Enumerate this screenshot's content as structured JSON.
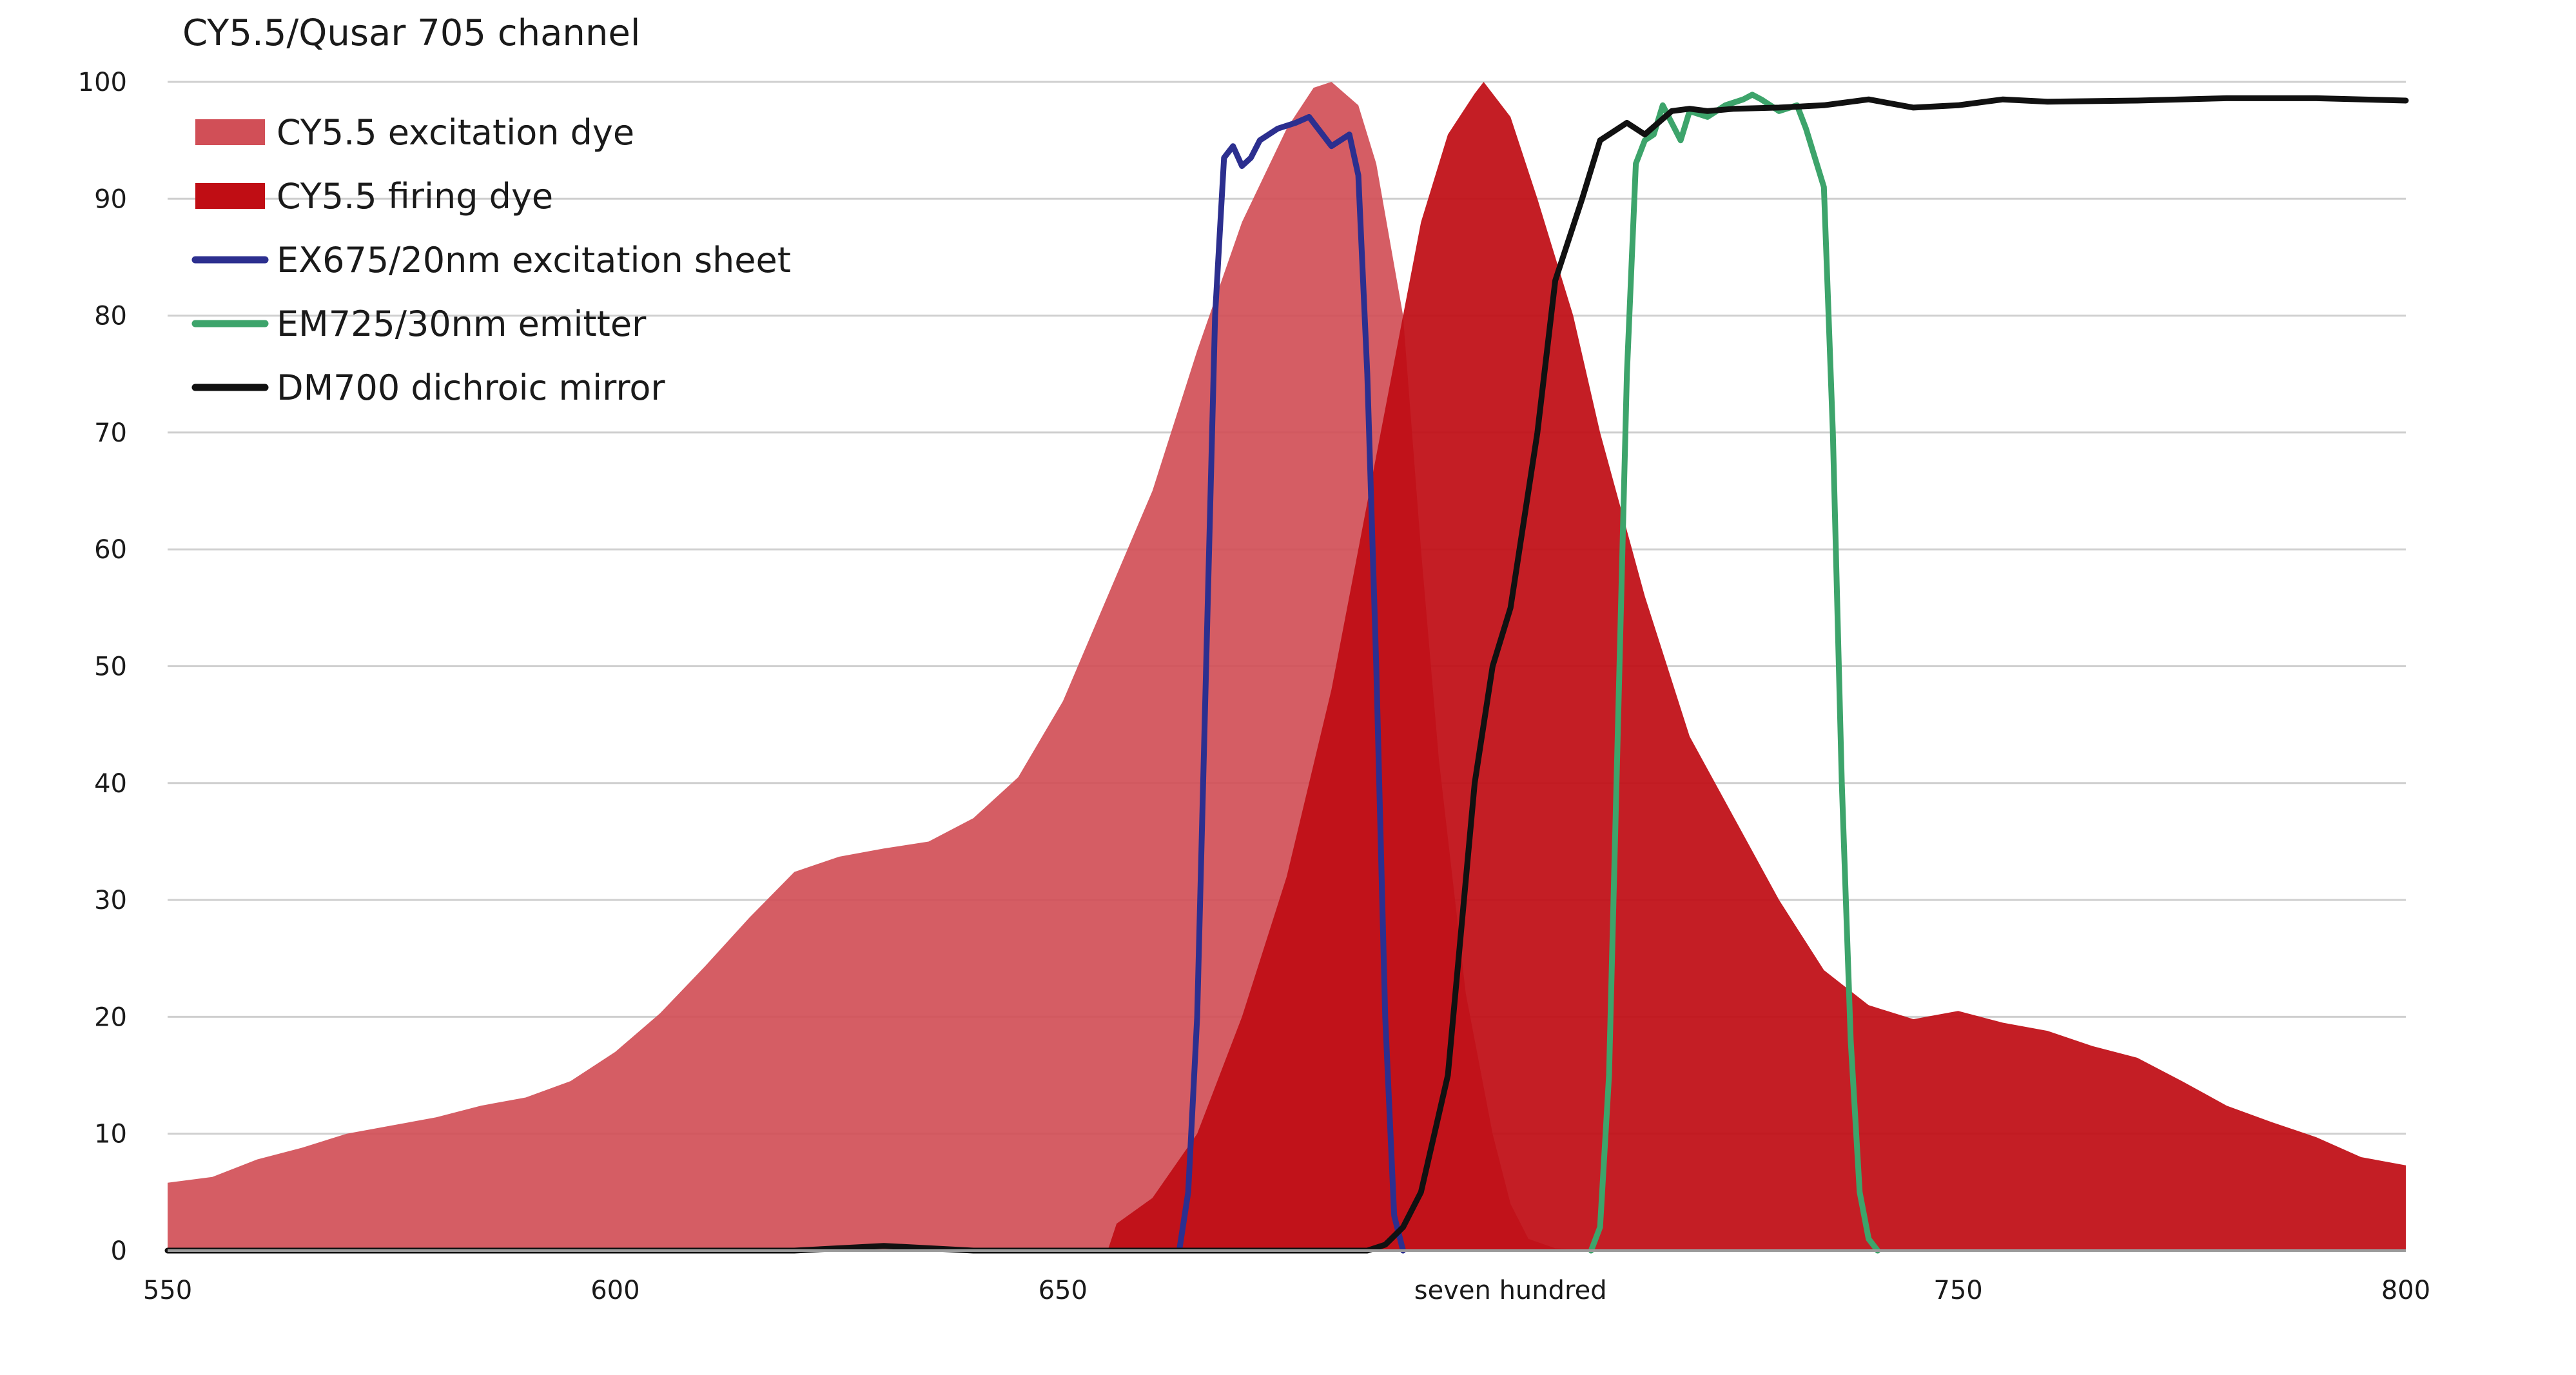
{
  "chart_data": {
    "type": "area",
    "title": "CY5.5/Qusar 705 channel",
    "xlabel": "",
    "ylabel": "",
    "xlim": [
      550,
      800
    ],
    "ylim": [
      0,
      100
    ],
    "x_ticks": [
      550,
      600,
      650,
      700,
      750,
      800
    ],
    "x_tick_labels": [
      "550",
      "600",
      "650",
      "seven hundred",
      "750",
      "800"
    ],
    "y_ticks": [
      0,
      10,
      20,
      30,
      40,
      50,
      60,
      70,
      80,
      90,
      100
    ],
    "y_tick_labels": [
      "0",
      "10",
      "20",
      "30",
      "40",
      "50",
      "60",
      "70",
      "80",
      "90",
      "100"
    ],
    "grid": true,
    "legend_position": "top-left",
    "series": [
      {
        "name": "CY5.5 excitation dye",
        "kind": "area",
        "color": "#d14f57",
        "points": [
          [
            550,
            5.8
          ],
          [
            555,
            6.3
          ],
          [
            560,
            7.8
          ],
          [
            565,
            8.8
          ],
          [
            570,
            10
          ],
          [
            575,
            10.7
          ],
          [
            580,
            11.4
          ],
          [
            585,
            12.4
          ],
          [
            590,
            13.1
          ],
          [
            595,
            14.5
          ],
          [
            600,
            17
          ],
          [
            605,
            20.3
          ],
          [
            610,
            24.3
          ],
          [
            615,
            28.5
          ],
          [
            620,
            32.4
          ],
          [
            625,
            33.7
          ],
          [
            630,
            34.4
          ],
          [
            635,
            35
          ],
          [
            640,
            37
          ],
          [
            645,
            40.5
          ],
          [
            650,
            47
          ],
          [
            655,
            56
          ],
          [
            660,
            65
          ],
          [
            665,
            77
          ],
          [
            670,
            88
          ],
          [
            675,
            96
          ],
          [
            678,
            99.5
          ],
          [
            680,
            100
          ],
          [
            683,
            98
          ],
          [
            685,
            93
          ],
          [
            688,
            80
          ],
          [
            690,
            60
          ],
          [
            692,
            42
          ],
          [
            695,
            22
          ],
          [
            698,
            10
          ],
          [
            700,
            4
          ],
          [
            702,
            1
          ],
          [
            705,
            0.2
          ],
          [
            710,
            0
          ]
        ]
      },
      {
        "name": "CY5.5 firing dye",
        "kind": "area",
        "color": "#c00d14",
        "points": [
          [
            655,
            0
          ],
          [
            656,
            2.3
          ],
          [
            660,
            4.5
          ],
          [
            665,
            10
          ],
          [
            670,
            20
          ],
          [
            675,
            32
          ],
          [
            680,
            48
          ],
          [
            685,
            68
          ],
          [
            688,
            80
          ],
          [
            690,
            88
          ],
          [
            693,
            95.5
          ],
          [
            696,
            99
          ],
          [
            697,
            100
          ],
          [
            700,
            97
          ],
          [
            703,
            90
          ],
          [
            707,
            80
          ],
          [
            710,
            70
          ],
          [
            715,
            56
          ],
          [
            720,
            44
          ],
          [
            725,
            37
          ],
          [
            730,
            30
          ],
          [
            735,
            24
          ],
          [
            740,
            21
          ],
          [
            745,
            19.8
          ],
          [
            750,
            20.5
          ],
          [
            755,
            19.5
          ],
          [
            760,
            18.8
          ],
          [
            765,
            17.5
          ],
          [
            770,
            16.5
          ],
          [
            775,
            14.5
          ],
          [
            780,
            12.4
          ],
          [
            785,
            11
          ],
          [
            790,
            9.7
          ],
          [
            795,
            8
          ],
          [
            800,
            7.3
          ]
        ]
      },
      {
        "name": "EX675/20nm excitation sheet",
        "kind": "line",
        "color": "#2c2f8f",
        "points": [
          [
            663,
            0
          ],
          [
            664,
            5
          ],
          [
            665,
            20
          ],
          [
            666,
            50
          ],
          [
            667,
            80
          ],
          [
            668,
            93.5
          ],
          [
            669,
            94.5
          ],
          [
            670,
            92.8
          ],
          [
            671,
            93.5
          ],
          [
            672,
            95
          ],
          [
            674,
            96
          ],
          [
            676,
            96.5
          ],
          [
            677.5,
            97
          ],
          [
            679,
            95.5
          ],
          [
            680,
            94.5
          ],
          [
            681,
            95
          ],
          [
            682,
            95.5
          ],
          [
            683,
            92
          ],
          [
            684,
            75
          ],
          [
            685,
            50
          ],
          [
            686,
            20
          ],
          [
            687,
            3
          ],
          [
            688,
            0
          ]
        ]
      },
      {
        "name": "EM725/30nm emitter",
        "kind": "line",
        "color": "#3da46b",
        "points": [
          [
            709,
            0
          ],
          [
            710,
            2
          ],
          [
            711,
            15
          ],
          [
            712,
            45
          ],
          [
            713,
            75
          ],
          [
            714,
            93
          ],
          [
            715,
            95
          ],
          [
            716,
            95.5
          ],
          [
            717,
            98
          ],
          [
            718,
            96.5
          ],
          [
            719,
            95
          ],
          [
            720,
            97.5
          ],
          [
            722,
            97
          ],
          [
            724,
            98
          ],
          [
            726,
            98.5
          ],
          [
            727,
            98.9
          ],
          [
            728,
            98.5
          ],
          [
            730,
            97.5
          ],
          [
            732,
            98
          ],
          [
            733,
            96
          ],
          [
            735,
            91
          ],
          [
            736,
            70
          ],
          [
            737,
            40
          ],
          [
            738,
            18
          ],
          [
            739,
            5
          ],
          [
            740,
            1
          ],
          [
            741,
            0
          ]
        ]
      },
      {
        "name": "DM700 dichroic mirror",
        "kind": "line",
        "color": "#111111",
        "points": [
          [
            550,
            0
          ],
          [
            620,
            0
          ],
          [
            630,
            0.4
          ],
          [
            640,
            0
          ],
          [
            680,
            0
          ],
          [
            684,
            0
          ],
          [
            686,
            0.5
          ],
          [
            688,
            2
          ],
          [
            690,
            5
          ],
          [
            693,
            15
          ],
          [
            696,
            40
          ],
          [
            698,
            50
          ],
          [
            700,
            55
          ],
          [
            703,
            70
          ],
          [
            705,
            83
          ],
          [
            708,
            90
          ],
          [
            710,
            95
          ],
          [
            713,
            96.5
          ],
          [
            715,
            95.5
          ],
          [
            718,
            97.5
          ],
          [
            720,
            97.7
          ],
          [
            722,
            97.5
          ],
          [
            725,
            97.7
          ],
          [
            730,
            97.8
          ],
          [
            735,
            98
          ],
          [
            740,
            98.5
          ],
          [
            745,
            97.8
          ],
          [
            750,
            98
          ],
          [
            755,
            98.5
          ],
          [
            760,
            98.3
          ],
          [
            770,
            98.4
          ],
          [
            780,
            98.6
          ],
          [
            790,
            98.6
          ],
          [
            800,
            98.4
          ]
        ]
      }
    ]
  }
}
